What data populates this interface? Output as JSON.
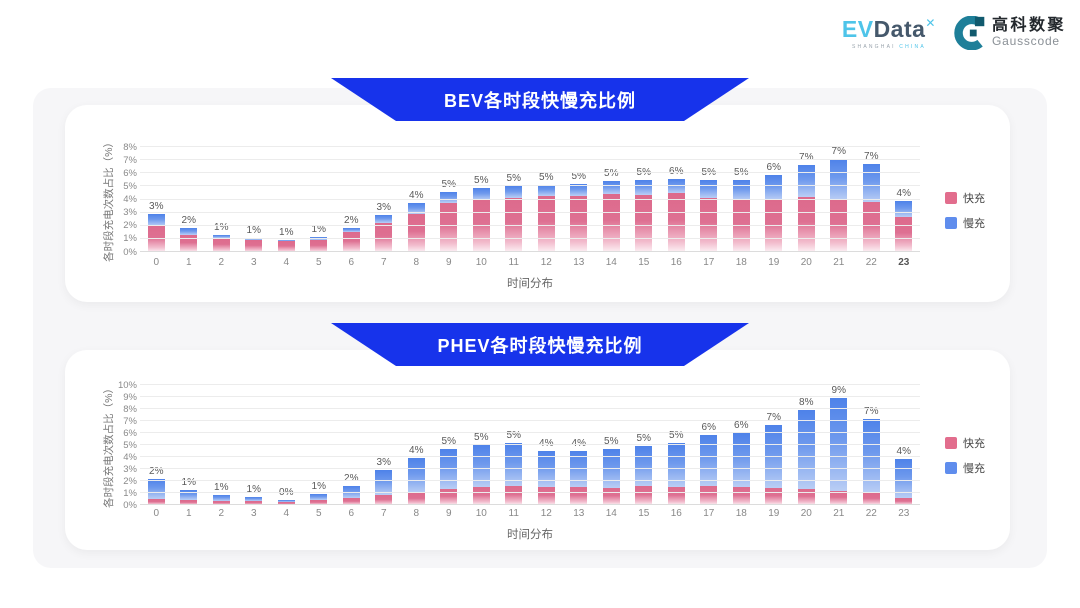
{
  "header": {
    "evdata": {
      "ev": "EV",
      "data": "Data",
      "sup": "✕",
      "tagline_left": "SHANGHAI",
      "tagline_right": "CHINA"
    },
    "gausscode": {
      "name_cn": "高科数聚",
      "name_en": "Gausscode"
    }
  },
  "colors": {
    "banner_blue": "#1733EB",
    "fast_pink": "#E26D8D",
    "slow_blue": "#5F8DED",
    "board_bg": "#F6F6F8",
    "card_bg": "#FFFFFF"
  },
  "chart_data": [
    {
      "type": "bar",
      "stacked": true,
      "title": "BEV各时段快慢充比例",
      "xlabel": "时间分布",
      "ylabel": "各时段充电次数占比（%）",
      "ylim": [
        0,
        8
      ],
      "y_tick_step": 1,
      "y_tick_suffix": "%",
      "grid": true,
      "legend_position": "right",
      "categories": [
        0,
        1,
        2,
        3,
        4,
        5,
        6,
        7,
        8,
        9,
        10,
        11,
        12,
        13,
        14,
        15,
        16,
        17,
        18,
        19,
        20,
        21,
        22,
        23
      ],
      "series": [
        {
          "key": "fast",
          "name": "快充",
          "color": "#E26D8D",
          "values": [
            2.0,
            1.3,
            1.1,
            0.9,
            0.85,
            0.95,
            1.55,
            2.2,
            2.9,
            3.7,
            4.0,
            4.1,
            4.25,
            4.3,
            4.4,
            4.35,
            4.5,
            4.1,
            4.0,
            4.0,
            4.2,
            4.0,
            3.8,
            2.7
          ]
        },
        {
          "key": "slow",
          "name": "慢充",
          "color": "#5F8DED",
          "values": [
            0.9,
            0.5,
            0.2,
            0.2,
            0.1,
            0.2,
            0.3,
            0.6,
            0.8,
            0.9,
            0.9,
            0.9,
            0.85,
            0.9,
            1.0,
            1.1,
            1.1,
            1.4,
            1.45,
            1.9,
            2.4,
            3.2,
            2.9,
            1.2
          ]
        }
      ],
      "total_labels": [
        "3%",
        "2%",
        "1%",
        "1%",
        "1%",
        "1%",
        "2%",
        "3%",
        "4%",
        "5%",
        "5%",
        "5%",
        "5%",
        "5%",
        "5%",
        "5%",
        "6%",
        "5%",
        "5%",
        "6%",
        "7%",
        "7%",
        "7%",
        "4%"
      ],
      "bold_x_label": "23"
    },
    {
      "type": "bar",
      "stacked": true,
      "title": "PHEV各时段快慢充比例",
      "xlabel": "时间分布",
      "ylabel": "各时段充电次数占比（%）",
      "ylim": [
        0,
        10
      ],
      "y_tick_step": 1,
      "y_tick_suffix": "%",
      "grid": true,
      "legend_position": "right",
      "categories": [
        0,
        1,
        2,
        3,
        4,
        5,
        6,
        7,
        8,
        9,
        10,
        11,
        12,
        13,
        14,
        15,
        16,
        17,
        18,
        19,
        20,
        21,
        22,
        23
      ],
      "series": [
        {
          "key": "fast",
          "name": "快充",
          "color": "#E26D8D",
          "values": [
            0.5,
            0.45,
            0.35,
            0.3,
            0.25,
            0.4,
            0.6,
            0.8,
            1.0,
            1.3,
            1.5,
            1.6,
            1.5,
            1.5,
            1.4,
            1.6,
            1.5,
            1.6,
            1.5,
            1.4,
            1.3,
            1.2,
            1.0,
            0.6
          ]
        },
        {
          "key": "slow",
          "name": "慢充",
          "color": "#5F8DED",
          "values": [
            1.7,
            0.8,
            0.45,
            0.35,
            0.2,
            0.5,
            1.0,
            2.1,
            2.9,
            3.4,
            3.5,
            3.6,
            3.0,
            3.0,
            3.3,
            3.3,
            3.7,
            4.2,
            4.5,
            5.3,
            6.6,
            7.7,
            6.2,
            3.2
          ]
        }
      ],
      "total_labels": [
        "2%",
        "1%",
        "1%",
        "1%",
        "0%",
        "1%",
        "2%",
        "3%",
        "4%",
        "5%",
        "5%",
        "5%",
        "4%",
        "4%",
        "5%",
        "5%",
        "5%",
        "6%",
        "6%",
        "7%",
        "8%",
        "9%",
        "7%",
        "4%"
      ],
      "bold_x_label": ""
    }
  ]
}
